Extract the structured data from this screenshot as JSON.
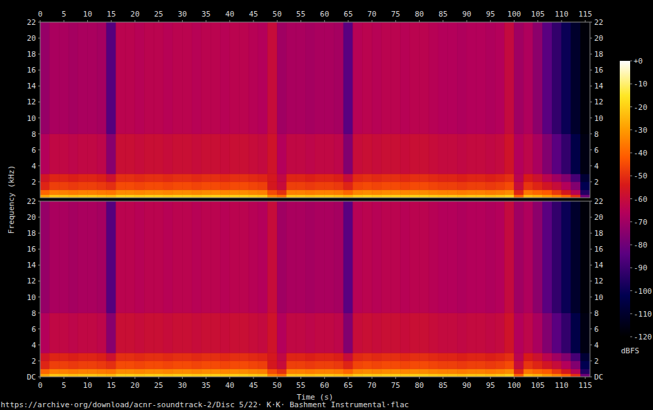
{
  "chart_data": [
    {
      "type": "heatmap",
      "ylabel": "Frequency (kHz)",
      "xlim": [
        0,
        116
      ],
      "xticks": [
        0,
        5,
        10,
        15,
        20,
        25,
        30,
        35,
        40,
        45,
        50,
        55,
        60,
        65,
        70,
        75,
        80,
        85,
        90,
        95,
        100,
        105,
        110,
        115
      ],
      "ylim": [
        0,
        22
      ],
      "yticks": [
        2,
        4,
        6,
        8,
        10,
        12,
        14,
        16,
        18,
        20,
        22
      ],
      "x_bins": [
        0,
        2,
        4,
        6,
        8,
        10,
        12,
        14,
        16,
        18,
        20,
        22,
        24,
        26,
        28,
        30,
        32,
        34,
        36,
        38,
        40,
        42,
        44,
        46,
        48,
        50,
        52,
        54,
        56,
        58,
        60,
        62,
        64,
        66,
        68,
        70,
        72,
        74,
        76,
        78,
        80,
        82,
        84,
        86,
        88,
        90,
        92,
        94,
        96,
        98,
        100,
        102,
        104,
        106,
        108,
        110,
        112,
        114,
        116
      ],
      "y_bins": [
        0,
        0.4,
        1,
        2,
        3,
        8,
        22
      ],
      "values": [
        [
          -28,
          -22,
          -22,
          -23,
          -22,
          -22,
          -23,
          -24,
          -20,
          -20,
          -21,
          -20,
          -20,
          -21,
          -20,
          -20,
          -21,
          -20,
          -20,
          -21,
          -20,
          -20,
          -21,
          -22,
          -34,
          -38,
          -22,
          -22,
          -23,
          -22,
          -22,
          -23,
          -25,
          -21,
          -20,
          -21,
          -20,
          -20,
          -21,
          -20,
          -20,
          -21,
          -22,
          -22,
          -23,
          -22,
          -22,
          -23,
          -22,
          -20,
          -40,
          -24,
          -26,
          -30,
          -34,
          -40,
          -50,
          -80
        ],
        [
          -40,
          -35,
          -35,
          -36,
          -35,
          -35,
          -36,
          -37,
          -33,
          -33,
          -34,
          -33,
          -33,
          -34,
          -33,
          -33,
          -34,
          -33,
          -33,
          -34,
          -33,
          -33,
          -34,
          -35,
          -45,
          -50,
          -35,
          -35,
          -36,
          -35,
          -35,
          -36,
          -40,
          -34,
          -33,
          -34,
          -33,
          -33,
          -34,
          -33,
          -33,
          -34,
          -35,
          -35,
          -36,
          -35,
          -35,
          -36,
          -35,
          -33,
          -52,
          -37,
          -40,
          -42,
          -48,
          -55,
          -65,
          -95
        ],
        [
          -52,
          -47,
          -47,
          -48,
          -47,
          -47,
          -48,
          -50,
          -45,
          -45,
          -46,
          -45,
          -45,
          -46,
          -45,
          -45,
          -46,
          -45,
          -45,
          -46,
          -45,
          -45,
          -46,
          -47,
          -55,
          -60,
          -47,
          -47,
          -48,
          -47,
          -47,
          -48,
          -52,
          -46,
          -45,
          -46,
          -45,
          -45,
          -46,
          -45,
          -45,
          -46,
          -47,
          -47,
          -48,
          -47,
          -47,
          -48,
          -47,
          -45,
          -60,
          -49,
          -52,
          -56,
          -60,
          -66,
          -76,
          -102
        ],
        [
          -56,
          -52,
          -52,
          -53,
          -52,
          -52,
          -53,
          -58,
          -50,
          -50,
          -51,
          -50,
          -50,
          -51,
          -50,
          -50,
          -51,
          -50,
          -50,
          -51,
          -50,
          -50,
          -51,
          -52,
          -55,
          -62,
          -52,
          -52,
          -53,
          -52,
          -52,
          -53,
          -60,
          -51,
          -50,
          -51,
          -50,
          -50,
          -51,
          -50,
          -50,
          -51,
          -52,
          -52,
          -53,
          -52,
          -52,
          -53,
          -52,
          -50,
          -64,
          -54,
          -58,
          -64,
          -70,
          -76,
          -88,
          -108
        ],
        [
          -66,
          -62,
          -62,
          -63,
          -62,
          -62,
          -63,
          -75,
          -59,
          -59,
          -60,
          -59,
          -59,
          -60,
          -59,
          -59,
          -60,
          -59,
          -59,
          -60,
          -59,
          -59,
          -60,
          -61,
          -57,
          -66,
          -62,
          -62,
          -63,
          -62,
          -62,
          -63,
          -76,
          -60,
          -59,
          -60,
          -59,
          -59,
          -60,
          -59,
          -59,
          -60,
          -61,
          -61,
          -62,
          -61,
          -61,
          -62,
          -61,
          -57,
          -66,
          -63,
          -68,
          -76,
          -84,
          -92,
          -104,
          -116
        ],
        [
          -72,
          -68,
          -68,
          -69,
          -68,
          -68,
          -69,
          -85,
          -64,
          -64,
          -65,
          -64,
          -64,
          -65,
          -64,
          -64,
          -65,
          -64,
          -64,
          -65,
          -64,
          -64,
          -65,
          -66,
          -60,
          -70,
          -68,
          -68,
          -69,
          -68,
          -68,
          -69,
          -84,
          -65,
          -64,
          -65,
          -64,
          -64,
          -65,
          -64,
          -64,
          -65,
          -66,
          -66,
          -67,
          -66,
          -66,
          -67,
          -66,
          -61,
          -70,
          -67,
          -74,
          -84,
          -92,
          -100,
          -110,
          -118
        ]
      ],
      "colorbar": {
        "label": "dBFS",
        "range": [
          -120,
          0
        ],
        "ticks": [
          {
            "value": 0,
            "label": "+0"
          },
          -10,
          -20,
          -30,
          -40,
          -50,
          -60,
          -70,
          -80,
          -90,
          -100,
          -110,
          -120
        ]
      }
    },
    {
      "type": "heatmap",
      "title": "https://archive·org/download/acnr-soundtrack-2/Disc 5/22· K·K· Bashment Instrumental·flac",
      "xlabel": "Time (s)",
      "xlim": [
        0,
        116
      ],
      "xticks": [
        0,
        5,
        10,
        15,
        20,
        25,
        30,
        35,
        40,
        45,
        50,
        55,
        60,
        65,
        70,
        75,
        80,
        85,
        90,
        95,
        100,
        105,
        110,
        115
      ],
      "ylim": [
        0,
        22
      ],
      "yticks": [
        {
          "value": 0,
          "label": "DC"
        },
        2,
        4,
        6,
        8,
        10,
        12,
        14,
        16,
        18,
        20,
        22
      ],
      "x_bins": [
        0,
        2,
        4,
        6,
        8,
        10,
        12,
        14,
        16,
        18,
        20,
        22,
        24,
        26,
        28,
        30,
        32,
        34,
        36,
        38,
        40,
        42,
        44,
        46,
        48,
        50,
        52,
        54,
        56,
        58,
        60,
        62,
        64,
        66,
        68,
        70,
        72,
        74,
        76,
        78,
        80,
        82,
        84,
        86,
        88,
        90,
        92,
        94,
        96,
        98,
        100,
        102,
        104,
        106,
        108,
        110,
        112,
        114,
        116
      ],
      "y_bins": [
        0,
        0.4,
        1,
        2,
        3,
        8,
        22
      ],
      "values": [
        [
          -28,
          -22,
          -22,
          -23,
          -22,
          -22,
          -23,
          -24,
          -20,
          -20,
          -21,
          -20,
          -20,
          -21,
          -20,
          -20,
          -21,
          -20,
          -20,
          -21,
          -20,
          -20,
          -21,
          -22,
          -34,
          -38,
          -22,
          -22,
          -23,
          -22,
          -22,
          -23,
          -25,
          -21,
          -20,
          -21,
          -20,
          -20,
          -21,
          -20,
          -20,
          -21,
          -22,
          -22,
          -23,
          -22,
          -22,
          -23,
          -22,
          -20,
          -40,
          -24,
          -26,
          -30,
          -34,
          -40,
          -50,
          -80
        ],
        [
          -40,
          -35,
          -35,
          -36,
          -35,
          -35,
          -36,
          -37,
          -33,
          -33,
          -34,
          -33,
          -33,
          -34,
          -33,
          -33,
          -34,
          -33,
          -33,
          -34,
          -33,
          -33,
          -34,
          -35,
          -45,
          -50,
          -35,
          -35,
          -36,
          -35,
          -35,
          -36,
          -40,
          -34,
          -33,
          -34,
          -33,
          -33,
          -34,
          -33,
          -33,
          -34,
          -35,
          -35,
          -36,
          -35,
          -35,
          -36,
          -35,
          -33,
          -52,
          -37,
          -40,
          -42,
          -48,
          -55,
          -65,
          -95
        ],
        [
          -52,
          -47,
          -47,
          -48,
          -47,
          -47,
          -48,
          -50,
          -45,
          -45,
          -46,
          -45,
          -45,
          -46,
          -45,
          -45,
          -46,
          -45,
          -45,
          -46,
          -45,
          -45,
          -46,
          -47,
          -55,
          -60,
          -47,
          -47,
          -48,
          -47,
          -47,
          -48,
          -52,
          -46,
          -45,
          -46,
          -45,
          -45,
          -46,
          -45,
          -45,
          -46,
          -47,
          -47,
          -48,
          -47,
          -47,
          -48,
          -47,
          -45,
          -60,
          -49,
          -52,
          -56,
          -60,
          -66,
          -76,
          -102
        ],
        [
          -56,
          -52,
          -52,
          -53,
          -52,
          -52,
          -53,
          -58,
          -50,
          -50,
          -51,
          -50,
          -50,
          -51,
          -50,
          -50,
          -51,
          -50,
          -50,
          -51,
          -50,
          -50,
          -51,
          -52,
          -55,
          -62,
          -52,
          -52,
          -53,
          -52,
          -52,
          -53,
          -60,
          -51,
          -50,
          -51,
          -50,
          -50,
          -51,
          -50,
          -50,
          -51,
          -52,
          -52,
          -53,
          -52,
          -52,
          -53,
          -52,
          -50,
          -64,
          -54,
          -58,
          -64,
          -70,
          -76,
          -88,
          -108
        ],
        [
          -66,
          -62,
          -62,
          -63,
          -62,
          -62,
          -63,
          -75,
          -59,
          -59,
          -60,
          -59,
          -59,
          -60,
          -59,
          -59,
          -60,
          -59,
          -59,
          -60,
          -59,
          -59,
          -60,
          -61,
          -57,
          -66,
          -62,
          -62,
          -63,
          -62,
          -62,
          -63,
          -76,
          -60,
          -59,
          -60,
          -59,
          -59,
          -60,
          -59,
          -59,
          -60,
          -61,
          -61,
          -62,
          -61,
          -61,
          -62,
          -61,
          -57,
          -66,
          -63,
          -68,
          -76,
          -84,
          -92,
          -104,
          -116
        ],
        [
          -72,
          -68,
          -68,
          -69,
          -68,
          -68,
          -69,
          -85,
          -64,
          -64,
          -65,
          -64,
          -64,
          -65,
          -64,
          -64,
          -65,
          -64,
          -64,
          -65,
          -64,
          -64,
          -65,
          -66,
          -60,
          -70,
          -68,
          -68,
          -69,
          -68,
          -68,
          -69,
          -84,
          -65,
          -64,
          -65,
          -64,
          -64,
          -65,
          -64,
          -64,
          -65,
          -66,
          -66,
          -67,
          -66,
          -66,
          -67,
          -66,
          -61,
          -70,
          -67,
          -74,
          -84,
          -92,
          -100,
          -110,
          -118
        ]
      ]
    }
  ]
}
